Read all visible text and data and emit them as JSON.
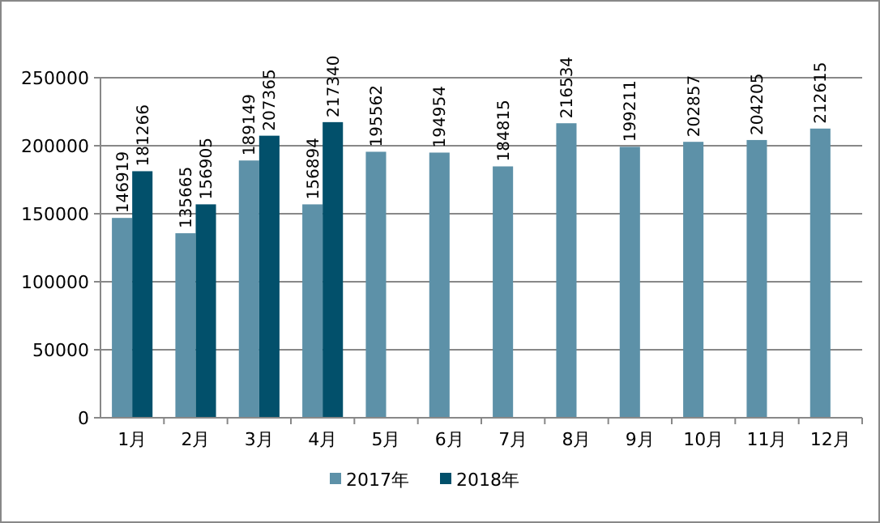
{
  "chart_data": {
    "type": "bar",
    "categories": [
      "1月",
      "2月",
      "3月",
      "4月",
      "5月",
      "6月",
      "7月",
      "8月",
      "9月",
      "10月",
      "11月",
      "12月"
    ],
    "series": [
      {
        "name": "2017年",
        "color": "#5d91a8",
        "values": [
          146919,
          135665,
          189149,
          156894,
          195562,
          194954,
          184815,
          216534,
          199211,
          202857,
          204205,
          212615
        ]
      },
      {
        "name": "2018年",
        "color": "#02506b",
        "values": [
          181266,
          156905,
          207365,
          217340,
          null,
          null,
          null,
          null,
          null,
          null,
          null,
          null
        ]
      }
    ],
    "ylim": [
      0,
      250000
    ],
    "yticks": [
      0,
      50000,
      100000,
      150000,
      200000,
      250000
    ],
    "grid": "y",
    "legend": "bottom",
    "data_labels": true
  }
}
